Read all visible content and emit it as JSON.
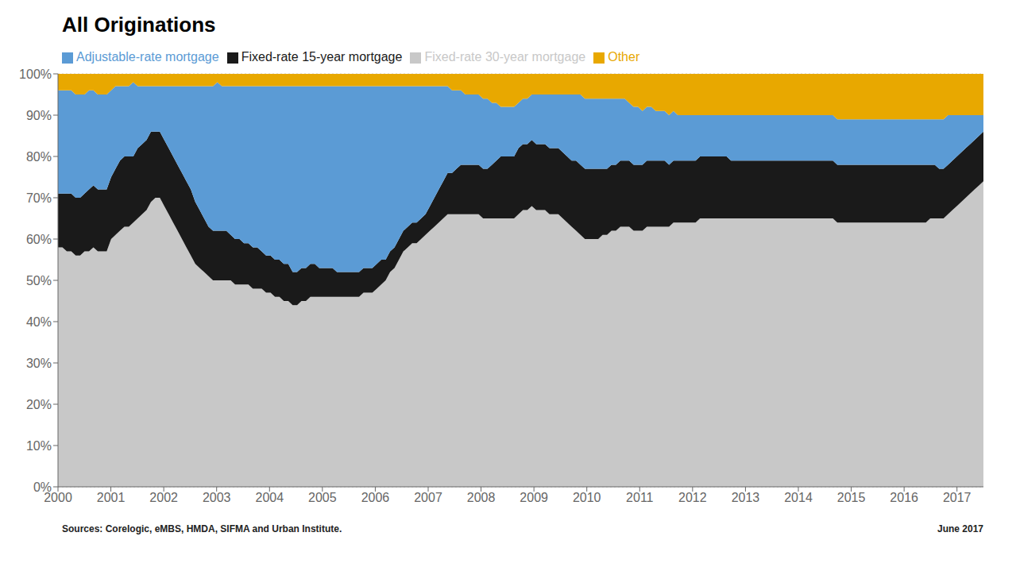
{
  "chart_data": {
    "type": "area",
    "title": "All Originations",
    "stacked": true,
    "grid": true,
    "legend": "top",
    "annotations": [
      "Sources: Corelogic, eMBS, HMDA, SIFMA and Urban Institute.",
      "June 2017"
    ],
    "xlim": [
      2000.0,
      2017.5
    ],
    "xticks": [
      2000,
      2001,
      2002,
      2003,
      2004,
      2005,
      2006,
      2007,
      2008,
      2009,
      2010,
      2011,
      2012,
      2013,
      2014,
      2015,
      2016,
      2017
    ],
    "ylim": [
      0,
      1.0
    ],
    "yticks": [
      {
        "value": 0,
        "label": "0%"
      },
      {
        "value": 0.1,
        "label": "10%"
      },
      {
        "value": 0.2,
        "label": "20%"
      },
      {
        "value": 0.3,
        "label": "30%"
      },
      {
        "value": 0.4,
        "label": "40%"
      },
      {
        "value": 0.5,
        "label": "50%"
      },
      {
        "value": 0.6,
        "label": "60%"
      },
      {
        "value": 0.7,
        "label": "70%"
      },
      {
        "value": 0.8,
        "label": "80%"
      },
      {
        "value": 0.9,
        "label": "90%"
      },
      {
        "value": 1.0,
        "label": "100%"
      }
    ],
    "x": [
      2000.0,
      2000.0837,
      2000.1675,
      2000.2512,
      2000.3349,
      2000.4187,
      2000.5024,
      2000.5861,
      2000.6699,
      2000.7536,
      2000.8373,
      2000.9211,
      2001.0048,
      2001.0885,
      2001.1722,
      2001.256,
      2001.3397,
      2001.4234,
      2001.5072,
      2001.5909,
      2001.6746,
      2001.7584,
      2001.8421,
      2001.9258,
      2002.0096,
      2002.0933,
      2002.177,
      2002.2608,
      2002.3445,
      2002.4282,
      2002.512,
      2002.5957,
      2002.6794,
      2002.7632,
      2002.8469,
      2002.9306,
      2003.0144,
      2003.0981,
      2003.1818,
      2003.2656,
      2003.3493,
      2003.433,
      2003.5167,
      2003.6005,
      2003.6842,
      2003.7679,
      2003.8517,
      2003.9354,
      2004.0191,
      2004.1029,
      2004.1866,
      2004.2703,
      2004.3541,
      2004.4378,
      2004.5215,
      2004.6053,
      2004.689,
      2004.7727,
      2004.8565,
      2004.9402,
      2005.0239,
      2005.1077,
      2005.1914,
      2005.2751,
      2005.3589,
      2005.4426,
      2005.5263,
      2005.61,
      2005.6938,
      2005.7775,
      2005.8612,
      2005.945,
      2006.0287,
      2006.1124,
      2006.1962,
      2006.2799,
      2006.3636,
      2006.4474,
      2006.5311,
      2006.6148,
      2006.6986,
      2006.7823,
      2006.866,
      2006.9498,
      2007.0335,
      2007.1172,
      2007.201,
      2007.2847,
      2007.3684,
      2007.4522,
      2007.5359,
      2007.6196,
      2007.7033,
      2007.7871,
      2007.8708,
      2007.9545,
      2008.0383,
      2008.122,
      2008.2057,
      2008.2895,
      2008.3732,
      2008.4569,
      2008.5407,
      2008.6244,
      2008.7081,
      2008.7919,
      2008.8756,
      2008.9593,
      2009.0431,
      2009.1268,
      2009.2105,
      2009.2943,
      2009.378,
      2009.4617,
      2009.5455,
      2009.6292,
      2009.7129,
      2009.7967,
      2009.8804,
      2009.9641,
      2010.0478,
      2010.1316,
      2010.2153,
      2010.299,
      2010.3828,
      2010.4665,
      2010.5502,
      2010.634,
      2010.7177,
      2010.8014,
      2010.8852,
      2010.9689,
      2011.0526,
      2011.1364,
      2011.2201,
      2011.3038,
      2011.3876,
      2011.4713,
      2011.555,
      2011.6388,
      2011.7225,
      2011.8062,
      2011.89,
      2011.9737,
      2012.0574,
      2012.1411,
      2012.2249,
      2012.3086,
      2012.3923,
      2012.4761,
      2012.5598,
      2012.6435,
      2012.7273,
      2012.811,
      2012.8947,
      2012.9785,
      2013.0622,
      2013.1459,
      2013.2297,
      2013.3134,
      2013.3971,
      2013.4809,
      2013.5646,
      2013.6483,
      2013.7321,
      2013.8158,
      2013.8995,
      2013.9833,
      2014.067,
      2014.1507,
      2014.2344,
      2014.3182,
      2014.4019,
      2014.4856,
      2014.5694,
      2014.6531,
      2014.7368,
      2014.8206,
      2014.9043,
      2014.988,
      2015.0718,
      2015.1555,
      2015.2392,
      2015.323,
      2015.4067,
      2015.4904,
      2015.5742,
      2015.6579,
      2015.7416,
      2015.8254,
      2015.9091,
      2015.9928,
      2016.0766,
      2016.1603,
      2016.244,
      2016.3278,
      2016.4115,
      2016.4952,
      2016.5789,
      2016.6627,
      2016.7464,
      2016.8301,
      2016.9139,
      2016.9976,
      2017.0813,
      2017.1651,
      2017.2488,
      2017.3325,
      2017.4163,
      2017.5
    ],
    "series": [
      {
        "name": "Fixed-rate 30-year mortgage",
        "color": "#c8c8c8",
        "values": [
          0.58,
          0.58,
          0.57,
          0.57,
          0.56,
          0.56,
          0.57,
          0.57,
          0.58,
          0.57,
          0.57,
          0.57,
          0.6,
          0.61,
          0.62,
          0.63,
          0.63,
          0.64,
          0.65,
          0.66,
          0.67,
          0.69,
          0.7,
          0.7,
          0.68,
          0.66,
          0.64,
          0.62,
          0.6,
          0.58,
          0.56,
          0.54,
          0.53,
          0.52,
          0.51,
          0.5,
          0.5,
          0.5,
          0.5,
          0.5,
          0.49,
          0.49,
          0.49,
          0.49,
          0.48,
          0.48,
          0.48,
          0.47,
          0.47,
          0.46,
          0.46,
          0.45,
          0.45,
          0.44,
          0.44,
          0.45,
          0.45,
          0.46,
          0.46,
          0.46,
          0.46,
          0.46,
          0.46,
          0.46,
          0.46,
          0.46,
          0.46,
          0.46,
          0.46,
          0.47,
          0.47,
          0.47,
          0.48,
          0.49,
          0.5,
          0.52,
          0.53,
          0.55,
          0.57,
          0.58,
          0.59,
          0.59,
          0.6,
          0.61,
          0.62,
          0.63,
          0.64,
          0.65,
          0.66,
          0.66,
          0.66,
          0.66,
          0.66,
          0.66,
          0.66,
          0.66,
          0.65,
          0.65,
          0.65,
          0.65,
          0.65,
          0.65,
          0.65,
          0.65,
          0.66,
          0.67,
          0.67,
          0.68,
          0.67,
          0.67,
          0.67,
          0.66,
          0.66,
          0.66,
          0.65,
          0.64,
          0.63,
          0.62,
          0.61,
          0.6,
          0.6,
          0.6,
          0.6,
          0.61,
          0.61,
          0.62,
          0.62,
          0.63,
          0.63,
          0.63,
          0.62,
          0.62,
          0.62,
          0.63,
          0.63,
          0.63,
          0.63,
          0.63,
          0.63,
          0.64,
          0.64,
          0.64,
          0.64,
          0.64,
          0.64,
          0.65,
          0.65,
          0.65,
          0.65,
          0.65,
          0.65,
          0.65,
          0.65,
          0.65,
          0.65,
          0.65,
          0.65,
          0.65,
          0.65,
          0.65,
          0.65,
          0.65,
          0.65,
          0.65,
          0.65,
          0.65,
          0.65,
          0.65,
          0.65,
          0.65,
          0.65,
          0.65,
          0.65,
          0.65,
          0.65,
          0.65,
          0.64,
          0.64,
          0.64,
          0.64,
          0.64,
          0.64,
          0.64,
          0.64,
          0.64,
          0.64,
          0.64,
          0.64,
          0.64,
          0.64,
          0.64,
          0.64,
          0.64,
          0.64,
          0.64,
          0.64,
          0.64,
          0.65,
          0.65,
          0.65,
          0.65,
          0.66,
          0.67,
          0.68,
          0.69,
          0.7,
          0.71,
          0.72,
          0.73,
          0.74
        ]
      },
      {
        "name": "Fixed-rate 15-year mortgage",
        "color": "#1a1a1a",
        "values": [
          0.13,
          0.13,
          0.14,
          0.14,
          0.14,
          0.14,
          0.14,
          0.15,
          0.15,
          0.15,
          0.15,
          0.15,
          0.15,
          0.16,
          0.17,
          0.17,
          0.17,
          0.16,
          0.17,
          0.17,
          0.17,
          0.17,
          0.16,
          0.16,
          0.16,
          0.16,
          0.16,
          0.16,
          0.16,
          0.16,
          0.16,
          0.15,
          0.14,
          0.13,
          0.12,
          0.12,
          0.12,
          0.12,
          0.12,
          0.11,
          0.11,
          0.11,
          0.1,
          0.1,
          0.1,
          0.1,
          0.09,
          0.09,
          0.09,
          0.09,
          0.09,
          0.09,
          0.09,
          0.08,
          0.08,
          0.08,
          0.08,
          0.08,
          0.08,
          0.07,
          0.07,
          0.07,
          0.07,
          0.06,
          0.06,
          0.06,
          0.06,
          0.06,
          0.06,
          0.06,
          0.06,
          0.06,
          0.06,
          0.06,
          0.05,
          0.05,
          0.05,
          0.05,
          0.05,
          0.05,
          0.05,
          0.05,
          0.05,
          0.05,
          0.06,
          0.07,
          0.08,
          0.09,
          0.1,
          0.1,
          0.11,
          0.12,
          0.12,
          0.12,
          0.12,
          0.12,
          0.12,
          0.12,
          0.13,
          0.14,
          0.15,
          0.15,
          0.15,
          0.15,
          0.16,
          0.16,
          0.16,
          0.16,
          0.16,
          0.16,
          0.16,
          0.16,
          0.16,
          0.16,
          0.16,
          0.16,
          0.16,
          0.17,
          0.17,
          0.17,
          0.17,
          0.17,
          0.17,
          0.16,
          0.16,
          0.16,
          0.16,
          0.16,
          0.16,
          0.16,
          0.16,
          0.16,
          0.16,
          0.16,
          0.16,
          0.16,
          0.16,
          0.16,
          0.15,
          0.15,
          0.15,
          0.15,
          0.15,
          0.15,
          0.15,
          0.15,
          0.15,
          0.15,
          0.15,
          0.15,
          0.15,
          0.15,
          0.14,
          0.14,
          0.14,
          0.14,
          0.14,
          0.14,
          0.14,
          0.14,
          0.14,
          0.14,
          0.14,
          0.14,
          0.14,
          0.14,
          0.14,
          0.14,
          0.14,
          0.14,
          0.14,
          0.14,
          0.14,
          0.14,
          0.14,
          0.14,
          0.14,
          0.14,
          0.14,
          0.14,
          0.14,
          0.14,
          0.14,
          0.14,
          0.14,
          0.14,
          0.14,
          0.14,
          0.14,
          0.14,
          0.14,
          0.14,
          0.14,
          0.14,
          0.14,
          0.14,
          0.14,
          0.13,
          0.13,
          0.12,
          0.12,
          0.12,
          0.12,
          0.12,
          0.12,
          0.12,
          0.12,
          0.12,
          0.12,
          0.12
        ]
      },
      {
        "name": "Adjustable-rate mortgage",
        "color": "#5b9bd5",
        "values": [
          0.25,
          0.25,
          0.25,
          0.25,
          0.25,
          0.25,
          0.24,
          0.24,
          0.23,
          0.23,
          0.23,
          0.23,
          0.21,
          0.2,
          0.18,
          0.17,
          0.17,
          0.18,
          0.15,
          0.14,
          0.13,
          0.11,
          0.11,
          0.11,
          0.13,
          0.15,
          0.17,
          0.19,
          0.21,
          0.23,
          0.25,
          0.28,
          0.3,
          0.32,
          0.34,
          0.35,
          0.36,
          0.35,
          0.35,
          0.36,
          0.37,
          0.37,
          0.38,
          0.38,
          0.39,
          0.39,
          0.4,
          0.41,
          0.41,
          0.42,
          0.42,
          0.43,
          0.43,
          0.45,
          0.45,
          0.44,
          0.44,
          0.43,
          0.43,
          0.44,
          0.44,
          0.44,
          0.44,
          0.45,
          0.45,
          0.45,
          0.45,
          0.45,
          0.45,
          0.44,
          0.44,
          0.44,
          0.43,
          0.42,
          0.42,
          0.4,
          0.39,
          0.37,
          0.35,
          0.34,
          0.33,
          0.33,
          0.32,
          0.31,
          0.29,
          0.27,
          0.25,
          0.23,
          0.21,
          0.2,
          0.19,
          0.18,
          0.17,
          0.17,
          0.17,
          0.17,
          0.17,
          0.17,
          0.15,
          0.14,
          0.12,
          0.12,
          0.12,
          0.12,
          0.11,
          0.11,
          0.11,
          0.11,
          0.12,
          0.12,
          0.12,
          0.13,
          0.13,
          0.13,
          0.14,
          0.15,
          0.16,
          0.16,
          0.17,
          0.17,
          0.17,
          0.17,
          0.17,
          0.17,
          0.17,
          0.16,
          0.16,
          0.15,
          0.15,
          0.14,
          0.14,
          0.14,
          0.13,
          0.13,
          0.13,
          0.12,
          0.12,
          0.12,
          0.12,
          0.12,
          0.11,
          0.11,
          0.11,
          0.11,
          0.11,
          0.1,
          0.1,
          0.1,
          0.1,
          0.1,
          0.1,
          0.1,
          0.11,
          0.11,
          0.11,
          0.11,
          0.11,
          0.11,
          0.11,
          0.11,
          0.11,
          0.11,
          0.11,
          0.11,
          0.11,
          0.11,
          0.11,
          0.11,
          0.11,
          0.11,
          0.11,
          0.11,
          0.11,
          0.11,
          0.11,
          0.11,
          0.11,
          0.11,
          0.11,
          0.11,
          0.11,
          0.11,
          0.11,
          0.11,
          0.11,
          0.11,
          0.11,
          0.11,
          0.11,
          0.11,
          0.11,
          0.11,
          0.11,
          0.11,
          0.11,
          0.11,
          0.11,
          0.11,
          0.11,
          0.12,
          0.12,
          0.12,
          0.11,
          0.1,
          0.09,
          0.08,
          0.07,
          0.06,
          0.05,
          0.04
        ]
      },
      {
        "name": "Other",
        "color": "#e8a800",
        "values": [
          0.04,
          0.04,
          0.04,
          0.04,
          0.05,
          0.05,
          0.05,
          0.04,
          0.04,
          0.05,
          0.05,
          0.05,
          0.04,
          0.03,
          0.03,
          0.03,
          0.03,
          0.02,
          0.03,
          0.03,
          0.03,
          0.03,
          0.03,
          0.03,
          0.03,
          0.03,
          0.03,
          0.03,
          0.03,
          0.03,
          0.03,
          0.03,
          0.03,
          0.03,
          0.03,
          0.03,
          0.02,
          0.03,
          0.03,
          0.03,
          0.03,
          0.03,
          0.03,
          0.03,
          0.03,
          0.03,
          0.03,
          0.03,
          0.03,
          0.03,
          0.03,
          0.03,
          0.03,
          0.03,
          0.03,
          0.03,
          0.03,
          0.03,
          0.03,
          0.03,
          0.03,
          0.03,
          0.03,
          0.03,
          0.03,
          0.03,
          0.03,
          0.03,
          0.03,
          0.03,
          0.03,
          0.03,
          0.03,
          0.03,
          0.03,
          0.03,
          0.03,
          0.03,
          0.03,
          0.03,
          0.03,
          0.03,
          0.03,
          0.03,
          0.03,
          0.03,
          0.03,
          0.03,
          0.03,
          0.04,
          0.04,
          0.04,
          0.05,
          0.05,
          0.05,
          0.05,
          0.06,
          0.06,
          0.07,
          0.07,
          0.08,
          0.08,
          0.08,
          0.08,
          0.07,
          0.06,
          0.06,
          0.05,
          0.05,
          0.05,
          0.05,
          0.05,
          0.05,
          0.05,
          0.05,
          0.05,
          0.05,
          0.05,
          0.05,
          0.06,
          0.06,
          0.06,
          0.06,
          0.06,
          0.06,
          0.06,
          0.06,
          0.06,
          0.06,
          0.07,
          0.08,
          0.08,
          0.09,
          0.08,
          0.08,
          0.09,
          0.09,
          0.09,
          0.1,
          0.09,
          0.1,
          0.1,
          0.1,
          0.1,
          0.1,
          0.1,
          0.1,
          0.1,
          0.1,
          0.1,
          0.1,
          0.1,
          0.1,
          0.1,
          0.1,
          0.1,
          0.1,
          0.1,
          0.1,
          0.1,
          0.1,
          0.1,
          0.1,
          0.1,
          0.1,
          0.1,
          0.1,
          0.1,
          0.1,
          0.1,
          0.1,
          0.1,
          0.1,
          0.1,
          0.1,
          0.1,
          0.11,
          0.11,
          0.11,
          0.11,
          0.11,
          0.11,
          0.11,
          0.11,
          0.11,
          0.11,
          0.11,
          0.11,
          0.11,
          0.11,
          0.11,
          0.11,
          0.11,
          0.11,
          0.11,
          0.11,
          0.11,
          0.11,
          0.11,
          0.11,
          0.11,
          0.1,
          0.1,
          0.1,
          0.1,
          0.1,
          0.1,
          0.1,
          0.1,
          0.1
        ]
      }
    ]
  }
}
